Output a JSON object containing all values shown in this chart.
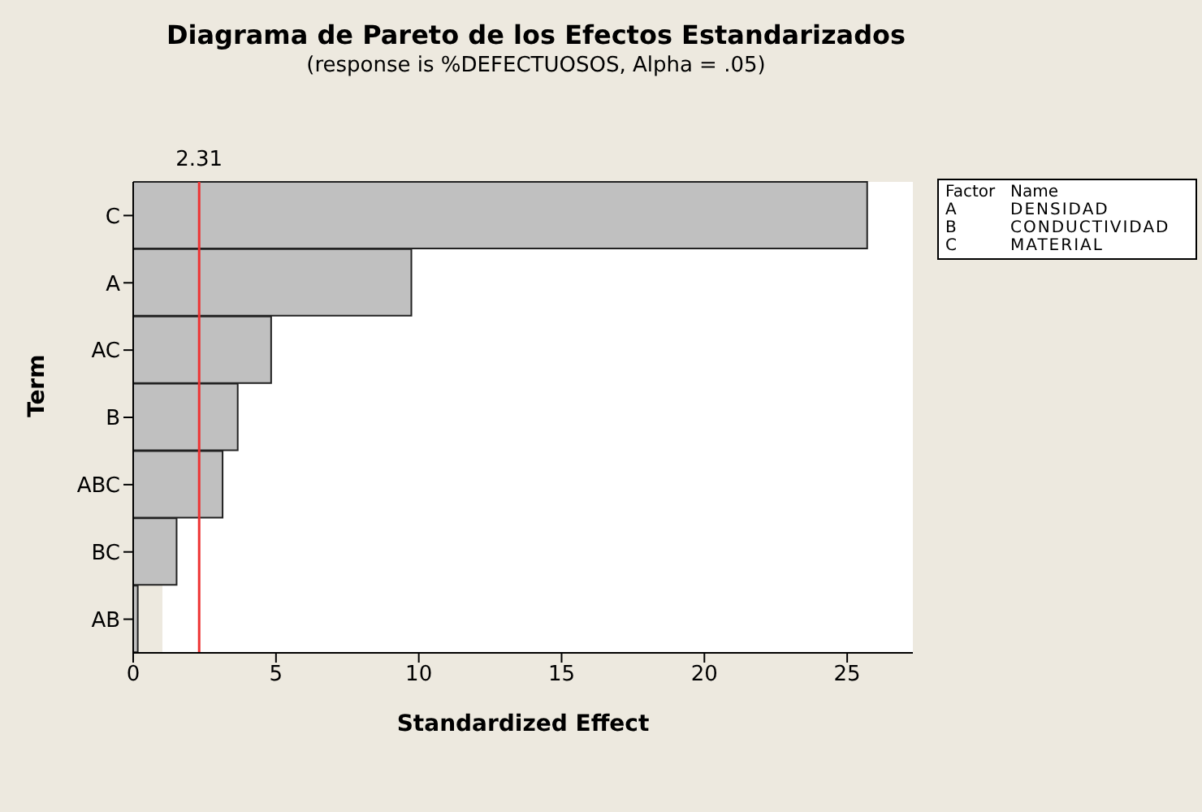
{
  "chart_data": {
    "type": "bar",
    "orientation": "horizontal",
    "title": "Diagrama de Pareto de los Efectos Estandarizados",
    "subtitle": "(response is %DEFECTUOSOS, Alpha = .05)",
    "xlabel": "Standardized Effect",
    "ylabel": "Term",
    "categories": [
      "C",
      "A",
      "AC",
      "B",
      "ABC",
      "BC",
      "AB"
    ],
    "values": [
      25.7,
      9.74,
      4.83,
      3.66,
      3.13,
      1.52,
      0.16
    ],
    "color": "#c0c0c0",
    "xlim": [
      0,
      27.3
    ],
    "xticks": [
      0,
      5,
      10,
      15,
      20,
      25
    ],
    "ref_lines": [
      {
        "axis": "x",
        "value": 2.31,
        "label": "2.31",
        "color": "#ee3333"
      }
    ],
    "annotations": [
      "Factor",
      "Name",
      "A",
      "DENSIDAD",
      "B",
      "CONDUCTIVIDAD",
      "C",
      "MATERIAL"
    ],
    "grid": false,
    "legend": false
  }
}
